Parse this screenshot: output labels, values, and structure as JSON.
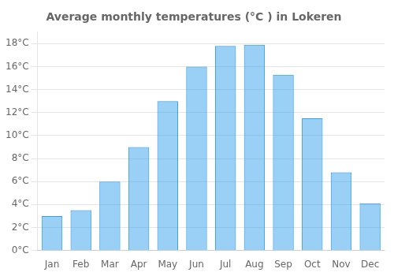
{
  "chart_data": {
    "type": "bar",
    "title": "Average monthly temperatures (°C ) in Lokeren",
    "categories": [
      "Jan",
      "Feb",
      "Mar",
      "Apr",
      "May",
      "Jun",
      "Jul",
      "Aug",
      "Sep",
      "Oct",
      "Nov",
      "Dec"
    ],
    "values": [
      3.0,
      3.5,
      6.0,
      9.0,
      13.0,
      16.0,
      17.8,
      17.9,
      15.3,
      11.5,
      6.8,
      4.1
    ],
    "ylim": [
      0,
      19
    ],
    "yticks": [
      {
        "value": 0,
        "label": "0°C"
      },
      {
        "value": 2,
        "label": "2°C"
      },
      {
        "value": 4,
        "label": "4°C"
      },
      {
        "value": 6,
        "label": "6°C"
      },
      {
        "value": 8,
        "label": "8°C"
      },
      {
        "value": 10,
        "label": "10°C"
      },
      {
        "value": 12,
        "label": "12°C"
      },
      {
        "value": 14,
        "label": "14°C"
      },
      {
        "value": 16,
        "label": "16°C"
      },
      {
        "value": 18,
        "label": "18°C"
      }
    ],
    "grid": true
  }
}
